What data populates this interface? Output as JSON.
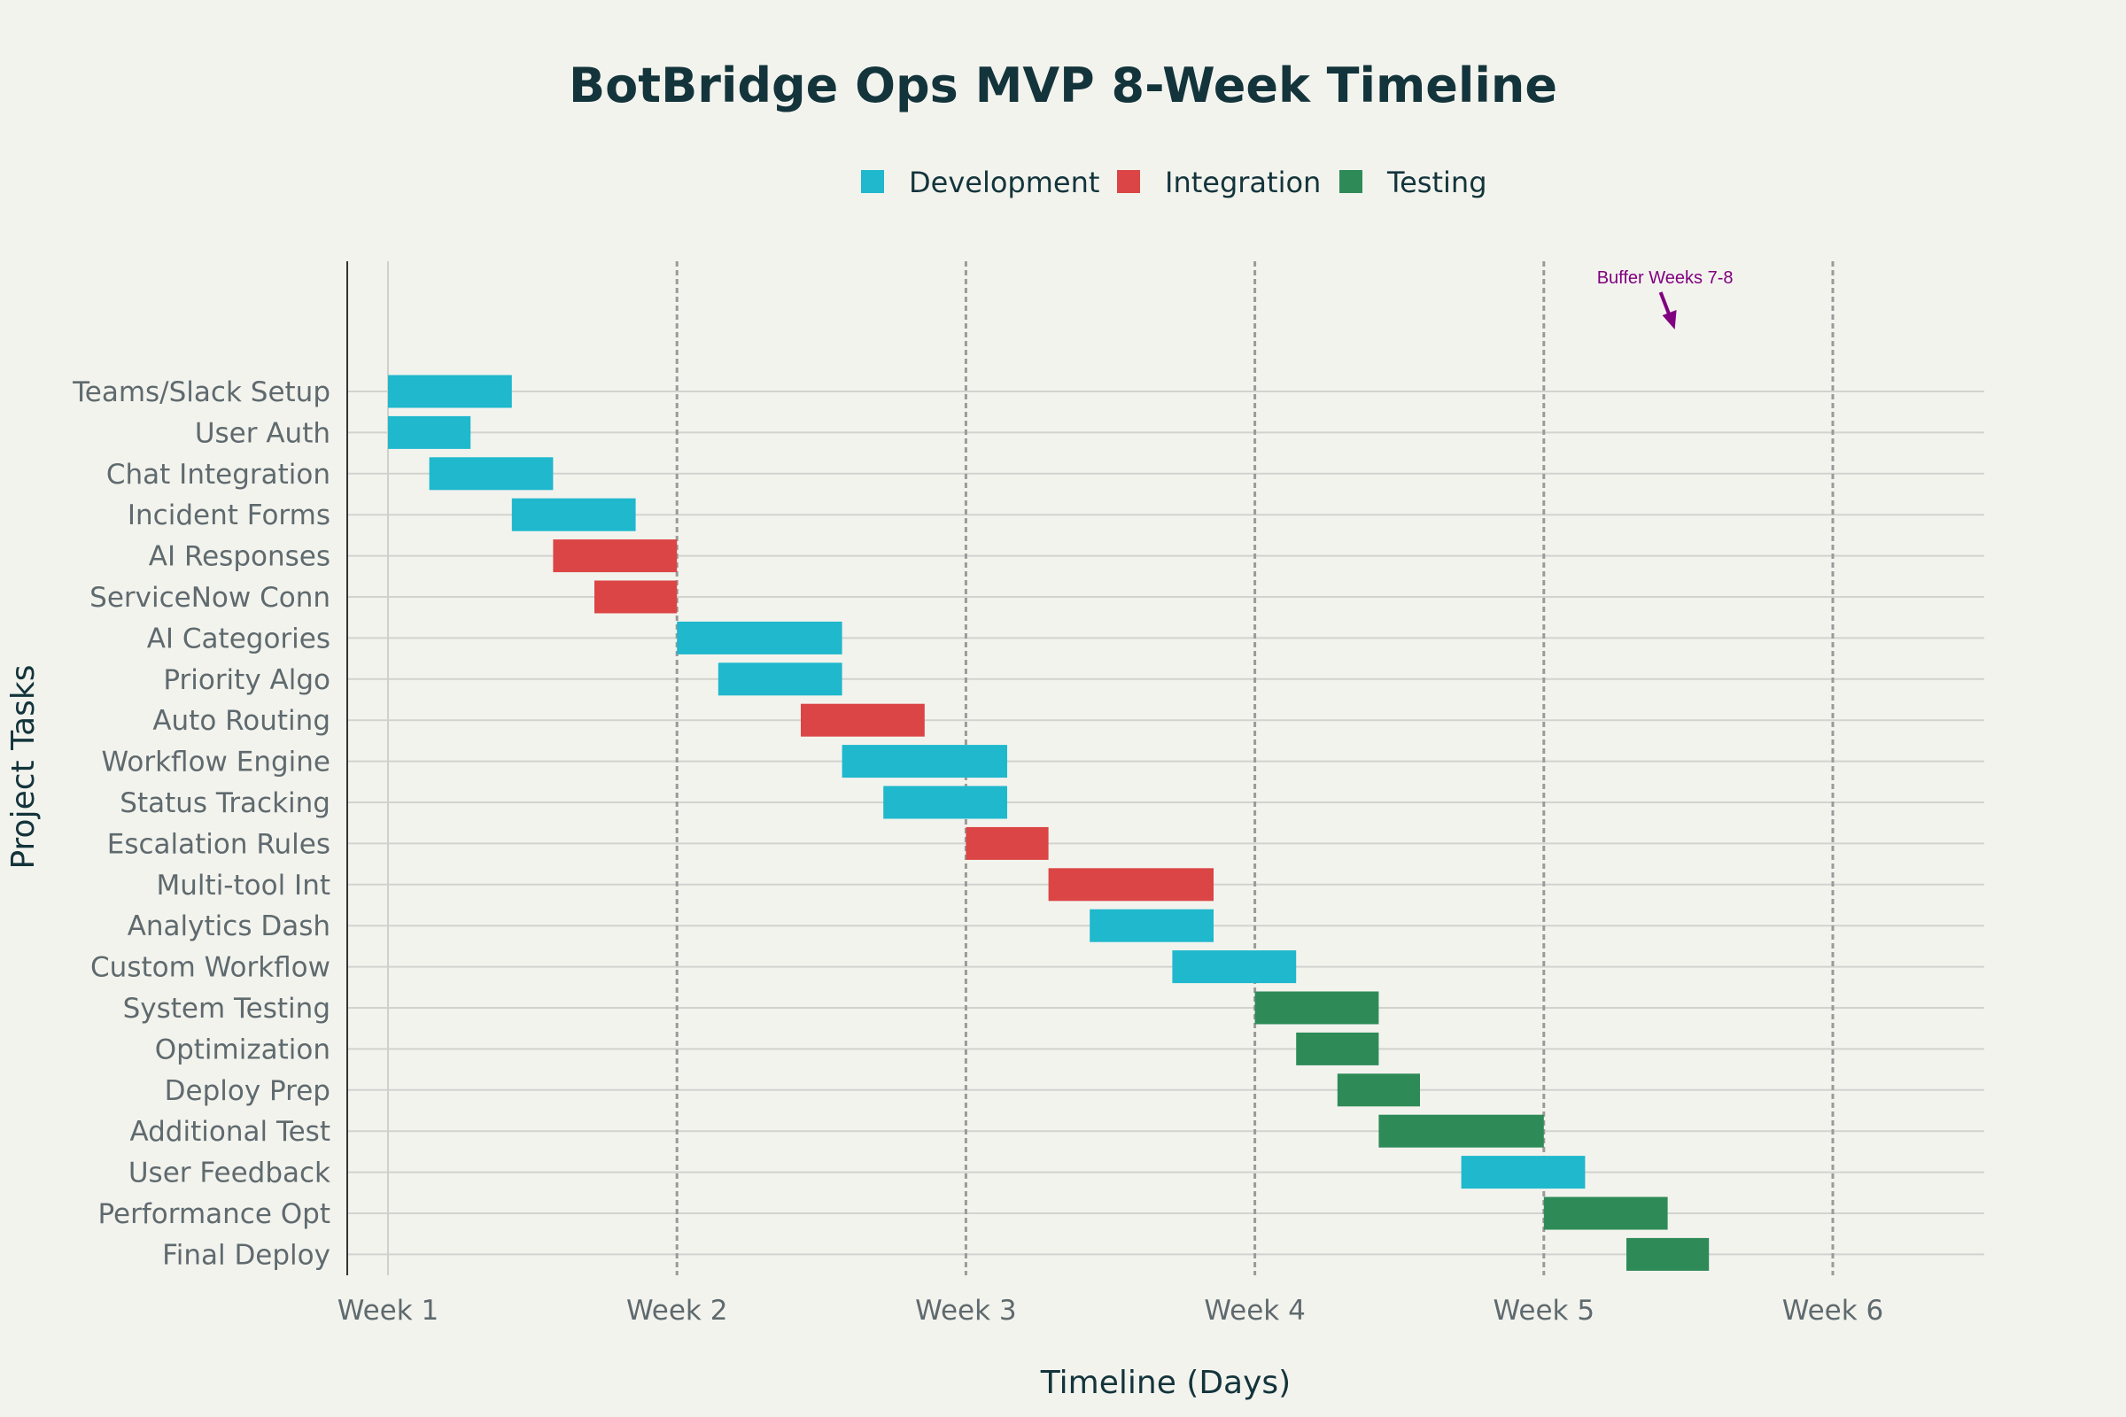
{
  "chart_data": {
    "type": "gantt",
    "title": "BotBridge Ops MVP 8-Week Timeline",
    "xlabel": "Timeline (Days)",
    "ylabel": "Project Tasks",
    "x_unit": "days",
    "xlim": [
      -1,
      39
    ],
    "x_ticks": [
      {
        "value": 0,
        "label": "Week 1"
      },
      {
        "value": 7,
        "label": "Week 2"
      },
      {
        "value": 14,
        "label": "Week 3"
      },
      {
        "value": 21,
        "label": "Week 4"
      },
      {
        "value": 28,
        "label": "Week 5"
      },
      {
        "value": 35,
        "label": "Week 6"
      }
    ],
    "legend": {
      "placement": "top-center",
      "entries": [
        {
          "name": "Development",
          "color": "#1fb8cd"
        },
        {
          "name": "Integration",
          "color": "#db4545"
        },
        {
          "name": "Testing",
          "color": "#2e8b57"
        }
      ]
    },
    "grid": {
      "x_major_dashed": true,
      "y_lines": true
    },
    "tasks": [
      {
        "name": "Teams/Slack Setup",
        "category": "Development",
        "start": 0,
        "end": 3
      },
      {
        "name": "User Auth",
        "category": "Development",
        "start": 0,
        "end": 2
      },
      {
        "name": "Chat Integration",
        "category": "Development",
        "start": 1,
        "end": 4
      },
      {
        "name": "Incident Forms",
        "category": "Development",
        "start": 3,
        "end": 6
      },
      {
        "name": "AI Responses",
        "category": "Integration",
        "start": 4,
        "end": 7
      },
      {
        "name": "ServiceNow Conn",
        "category": "Integration",
        "start": 5,
        "end": 7
      },
      {
        "name": "AI Categories",
        "category": "Development",
        "start": 7,
        "end": 11
      },
      {
        "name": "Priority Algo",
        "category": "Development",
        "start": 8,
        "end": 11
      },
      {
        "name": "Auto Routing",
        "category": "Integration",
        "start": 10,
        "end": 13
      },
      {
        "name": "Workflow Engine",
        "category": "Development",
        "start": 11,
        "end": 15
      },
      {
        "name": "Status Tracking",
        "category": "Development",
        "start": 12,
        "end": 15
      },
      {
        "name": "Escalation Rules",
        "category": "Integration",
        "start": 14,
        "end": 16
      },
      {
        "name": "Multi-tool Int",
        "category": "Integration",
        "start": 16,
        "end": 20
      },
      {
        "name": "Analytics Dash",
        "category": "Development",
        "start": 17,
        "end": 20
      },
      {
        "name": "Custom Workflow",
        "category": "Development",
        "start": 19,
        "end": 22
      },
      {
        "name": "System Testing",
        "category": "Testing",
        "start": 21,
        "end": 24
      },
      {
        "name": "Optimization",
        "category": "Testing",
        "start": 22,
        "end": 24
      },
      {
        "name": "Deploy Prep",
        "category": "Testing",
        "start": 23,
        "end": 25
      },
      {
        "name": "Additional Test",
        "category": "Testing",
        "start": 24,
        "end": 28
      },
      {
        "name": "User Feedback",
        "category": "Development",
        "start": 26,
        "end": 29
      },
      {
        "name": "Performance Opt",
        "category": "Testing",
        "start": 28,
        "end": 31
      },
      {
        "name": "Final Deploy",
        "category": "Testing",
        "start": 30,
        "end": 32
      }
    ],
    "annotations": [
      {
        "text": "Buffer Weeks 7-8",
        "x": 31,
        "color": "#800080",
        "arrow": true
      }
    ]
  }
}
